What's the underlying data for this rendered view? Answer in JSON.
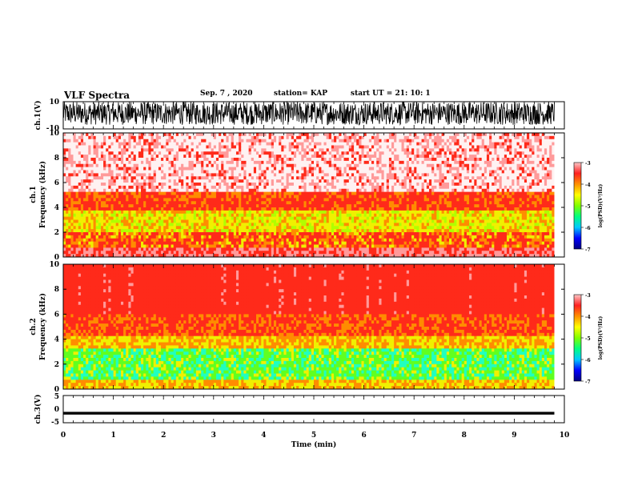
{
  "header": {
    "title": "VLF Spectra",
    "date": "Sep. 7 , 2020",
    "station": "station= KAP",
    "start": "start UT = 21: 10: 1"
  },
  "colorbar": {
    "ticks": [
      "-3",
      "-4",
      "-5",
      "-6",
      "-7"
    ],
    "label": "log(PSD)(V²/Hz)",
    "colors": [
      "#000080",
      "#0000ff",
      "#00c8ff",
      "#00ff80",
      "#80ff00",
      "#ffff00",
      "#ff9000",
      "#ff2020",
      "#ffc8c8"
    ]
  },
  "chart_data": [
    {
      "type": "line",
      "panel": "ch.1 waveform",
      "ylabel": "ch.1(V)",
      "ylim": [
        -10,
        10
      ],
      "yticks": [
        "10",
        "-10"
      ],
      "xlim": [
        0,
        10
      ],
      "grid": false,
      "description_of_values": "broadband noise spanning roughly -7 to +10 V over 0–9.8 min"
    },
    {
      "type": "heatmap",
      "panel": "ch.1 spectrogram",
      "ylabel": "ch.1 Frequency (kHz)",
      "ylim": [
        0,
        10
      ],
      "yticks": [
        "0",
        "2",
        "4",
        "6",
        "8",
        "10"
      ],
      "xlim": [
        0,
        9.8
      ],
      "bands": [
        {
          "from_khz": 0,
          "to_khz": 0.8,
          "level": "red/yellow lines"
        },
        {
          "from_khz": 0.8,
          "to_khz": 2.0,
          "level": "red-orange"
        },
        {
          "from_khz": 2.0,
          "to_khz": 3.8,
          "level": "yellow-green"
        },
        {
          "from_khz": 3.8,
          "to_khz": 5.0,
          "level": "orange-red"
        },
        {
          "from_khz": 5.0,
          "to_khz": 10,
          "level": "light red / white"
        }
      ]
    },
    {
      "type": "heatmap",
      "panel": "ch.2 spectrogram",
      "ylabel": "ch.2 Frequency (kHz)",
      "ylim": [
        0,
        10
      ],
      "yticks": [
        "0",
        "2",
        "4",
        "6",
        "8",
        "10"
      ],
      "xlim": [
        0,
        9.8
      ],
      "bands": [
        {
          "from_khz": 0,
          "to_khz": 0.8,
          "level": "yellow/orange"
        },
        {
          "from_khz": 0.8,
          "to_khz": 3.2,
          "level": "green-cyan"
        },
        {
          "from_khz": 3.2,
          "to_khz": 4.2,
          "level": "yellow"
        },
        {
          "from_khz": 4.2,
          "to_khz": 6.0,
          "level": "orange-red"
        },
        {
          "from_khz": 6.0,
          "to_khz": 10,
          "level": "red"
        }
      ]
    },
    {
      "type": "line",
      "panel": "ch.3 waveform",
      "ylabel": "ch.3(V)",
      "ylim": [
        -5,
        5
      ],
      "yticks": [
        "5",
        "0",
        "-5"
      ],
      "xlim": [
        0,
        10
      ],
      "value_range": [
        -2,
        -1
      ]
    }
  ],
  "xaxis": {
    "label": "Time (min)",
    "ticks": [
      "0",
      "1",
      "2",
      "3",
      "4",
      "5",
      "6",
      "7",
      "8",
      "9",
      "10"
    ]
  }
}
